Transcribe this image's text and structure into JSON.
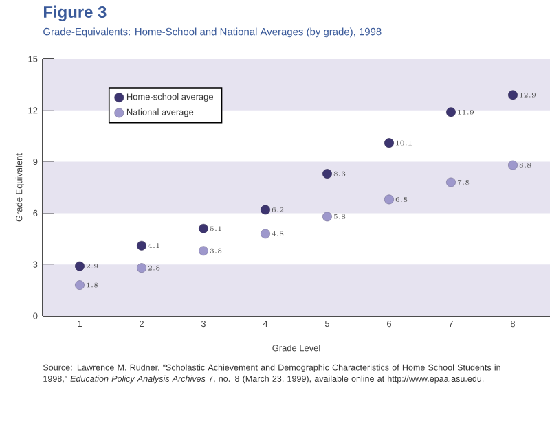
{
  "chart_data": {
    "type": "scatter",
    "title": "Figure 3",
    "subtitle": "Grade-Equivalents: Home-School and National Averages (by grade), 1998",
    "xlabel": "Grade Level",
    "ylabel": "Grade Equivalent",
    "x": [
      1,
      2,
      3,
      4,
      5,
      6,
      7,
      8
    ],
    "series": [
      {
        "name": "Home-school average",
        "color": "#3d3570",
        "values": [
          2.9,
          4.1,
          5.1,
          6.2,
          8.3,
          10.1,
          11.9,
          12.9
        ]
      },
      {
        "name": "National average",
        "color": "#9e98cc",
        "values": [
          1.8,
          2.8,
          3.8,
          4.8,
          5.8,
          6.8,
          7.8,
          8.8
        ]
      }
    ],
    "xlim": [
      0.4,
      8.6
    ],
    "xticks": [
      1,
      2,
      3,
      4,
      5,
      6,
      7,
      8
    ],
    "ylim": [
      0,
      15
    ],
    "yticks": [
      0,
      3,
      6,
      9,
      12,
      15
    ],
    "bands": [
      {
        "axis": "y",
        "from": 0,
        "to": 3,
        "color": "#e6e3f0"
      },
      {
        "axis": "y",
        "from": 6,
        "to": 9,
        "color": "#e6e3f0"
      },
      {
        "axis": "y",
        "from": 12,
        "to": 15,
        "color": "#e6e3f0"
      }
    ],
    "data_labels": true,
    "marker": "circle",
    "legend": "top left",
    "annotations": [
      "Source: Lawrence M. Rudner, “Scholastic Achievement and Demographic Characteristics of Home School Students in 1998,” *Education Policy Analysis Archives* 7, no. 8 (March 23, 1999), available online at http://www.epaa.asu.edu."
    ]
  }
}
